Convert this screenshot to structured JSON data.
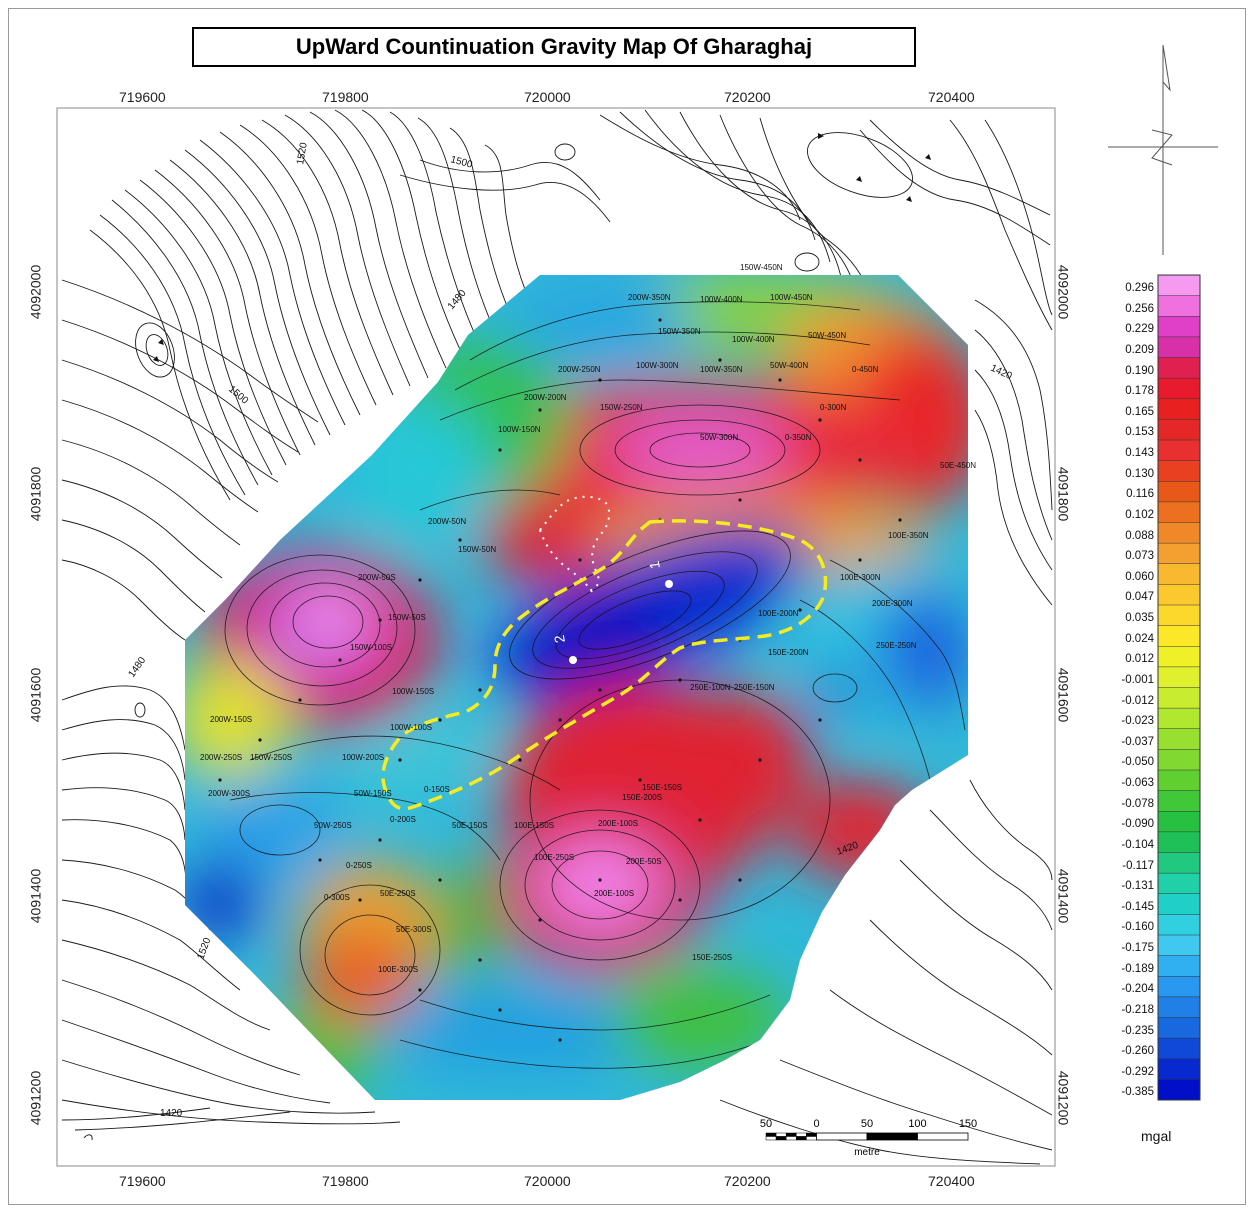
{
  "title": "UpWard Countinuation Gravity Map Of Gharaghaj",
  "easting_ticks": [
    "719600",
    "719800",
    "720000",
    "720200",
    "720400"
  ],
  "northing_ticks": [
    "4092000",
    "4091800",
    "4091600",
    "4091400",
    "4091200"
  ],
  "colorbar": {
    "unit": "mgal",
    "values": [
      "0.296",
      "0.256",
      "0.229",
      "0.209",
      "0.190",
      "0.178",
      "0.165",
      "0.153",
      "0.143",
      "0.130",
      "0.116",
      "0.102",
      "0.088",
      "0.073",
      "0.060",
      "0.047",
      "0.035",
      "0.024",
      "0.012",
      "-0.001",
      "-0.012",
      "-0.023",
      "-0.037",
      "-0.050",
      "-0.063",
      "-0.078",
      "-0.090",
      "-0.104",
      "-0.117",
      "-0.131",
      "-0.145",
      "-0.160",
      "-0.175",
      "-0.189",
      "-0.204",
      "-0.218",
      "-0.235",
      "-0.260",
      "-0.292",
      "-0.385"
    ],
    "colors": [
      "#f59af0",
      "#f070e0",
      "#e040c8",
      "#d830a8",
      "#e02050",
      "#e81a2e",
      "#e82020",
      "#e42828",
      "#e83030",
      "#e84020",
      "#e85818",
      "#ec7020",
      "#f08828",
      "#f4a030",
      "#f8b830",
      "#fcc830",
      "#fcd82c",
      "#fce828",
      "#f0f028",
      "#e0f02c",
      "#c8ec30",
      "#b0e830",
      "#98e030",
      "#80d830",
      "#60d030",
      "#40c838",
      "#28c040",
      "#20c058",
      "#20c880",
      "#20d0a8",
      "#20d0c8",
      "#30d0e0",
      "#40c8f0",
      "#30b0f0",
      "#2898f0",
      "#2080e8",
      "#1868e0",
      "#1048d8",
      "#0828d0",
      "#0010c8"
    ]
  },
  "scale_bar": {
    "labels": [
      "50",
      "0",
      "50",
      "100",
      "150"
    ],
    "unit": "metre"
  },
  "contour_labels": [
    "1520",
    "1500",
    "1480",
    "1500",
    "1480",
    "1420",
    "1420",
    "1420",
    "1520"
  ],
  "point_labels": [
    "1",
    "2"
  ],
  "station_labels": [
    "150W-450N",
    "200W-350N",
    "100W-400N",
    "100W-450N",
    "50W-450N",
    "150W-350N",
    "100W-400N",
    "200W-250N",
    "100W-300N",
    "100W-350N",
    "50W-400N",
    "0-450N",
    "200W-200N",
    "150W-250N",
    "50W-300N",
    "0-300N",
    "0-350N",
    "50E-450N",
    "100W-150N",
    "200W-50N",
    "150W-50N",
    "100E-350N",
    "100E-300N",
    "100E-200N",
    "150E-200N",
    "200E-300N",
    "250E-250N",
    "200W-50S",
    "150W-50S",
    "150W-100S",
    "100W-150S",
    "200W-150S",
    "200W-250S",
    "200W-300S",
    "150W-250S",
    "100W-200S",
    "50W-250S",
    "0-150S",
    "0-200S",
    "50W-150S",
    "100W-100S",
    "50E-150S",
    "100E-150S",
    "200E-100S",
    "150E-150S",
    "100E-250S",
    "50E-250S",
    "50E-300S",
    "0-250S",
    "0-300S",
    "100E-300S",
    "150E-200S",
    "200E-100S",
    "200E-50S",
    "250E-100N",
    "250E-150N",
    "150E-250S"
  ]
}
